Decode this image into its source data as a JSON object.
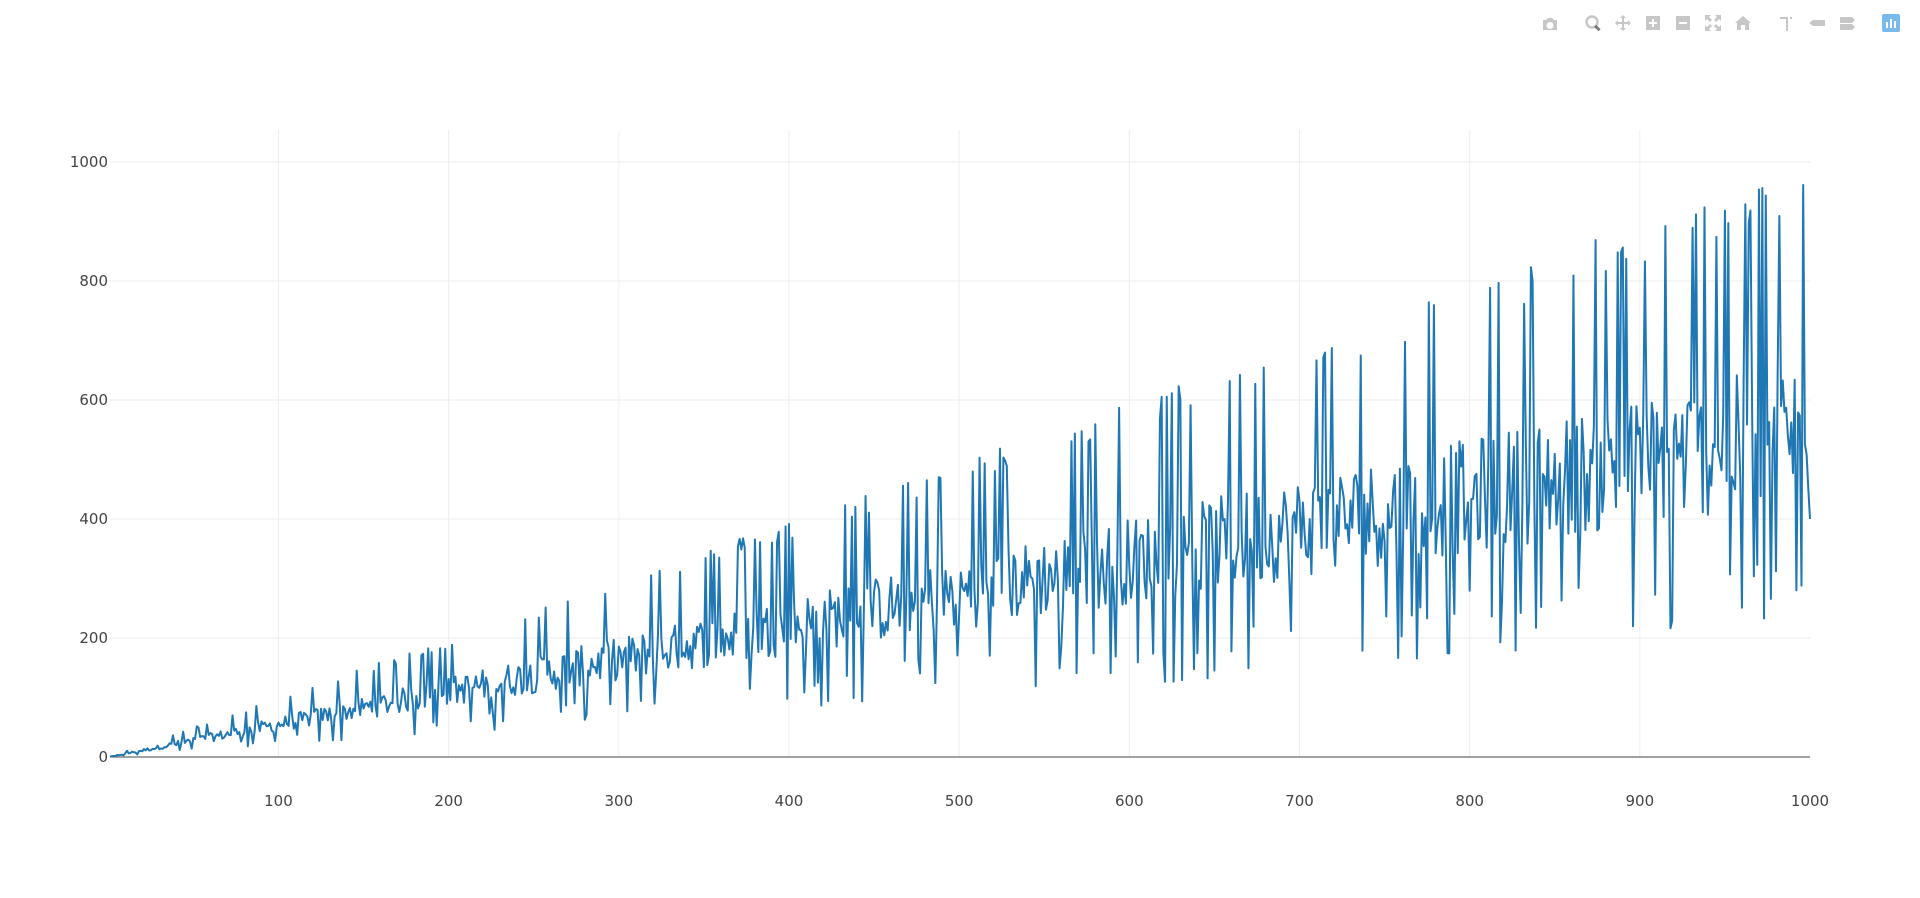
{
  "modebar": {
    "buttons": [
      {
        "name": "camera-icon",
        "title": "Download plot as a png"
      },
      {
        "name": "zoom-icon",
        "title": "Zoom"
      },
      {
        "name": "pan-icon",
        "title": "Pan"
      },
      {
        "name": "zoom-in-icon",
        "title": "Zoom in"
      },
      {
        "name": "zoom-out-icon",
        "title": "Zoom out"
      },
      {
        "name": "autoscale-icon",
        "title": "Autoscale"
      },
      {
        "name": "home-icon",
        "title": "Reset axes"
      },
      {
        "name": "spike-lines-icon",
        "title": "Toggle Spike Lines"
      },
      {
        "name": "hover-closest-icon",
        "title": "Show closest data on hover"
      },
      {
        "name": "hover-compare-icon",
        "title": "Compare data on hover"
      },
      {
        "name": "plotly-logo-icon",
        "title": "Produced with Plotly"
      }
    ]
  },
  "chart_data": {
    "type": "line",
    "title": "",
    "xlabel": "",
    "ylabel": "",
    "xlim": [
      1,
      1000
    ],
    "ylim": [
      -20,
      1050
    ],
    "x_ticks": [
      100,
      200,
      300,
      400,
      500,
      600,
      700,
      800,
      900,
      1000
    ],
    "y_ticks": [
      0,
      200,
      400,
      600,
      800,
      1000
    ],
    "grid": true,
    "line_color": "#1f77b4",
    "series": [
      {
        "x": [
          1,
          1000
        ],
        "y_upper_envelope": [
          1,
          995
        ],
        "y_lower_envelope_approx": [
          0,
          250
        ],
        "y_center_trend": [
          0,
          550
        ],
        "pattern": "dense oscillation between lower and upper envelope, amplitude growing linearly with x"
      }
    ]
  }
}
